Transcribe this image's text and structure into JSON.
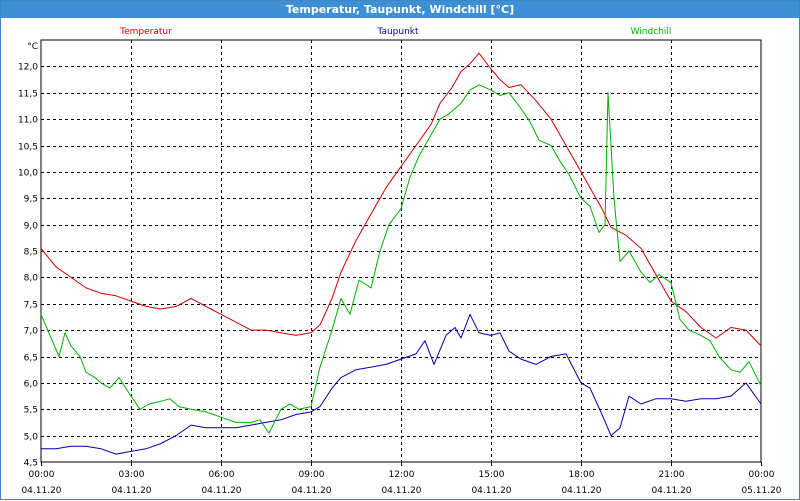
{
  "window": {
    "title": "Temperatur, Taupunkt, Windchill [°C]"
  },
  "colors": {
    "titlebar": "#3e8fd3",
    "Temperatur": "#cc0000",
    "Taupunkt": "#0000aa",
    "Windchill": "#00b000"
  },
  "chart_data": {
    "type": "line",
    "title": "Temperatur, Taupunkt, Windchill [°C]",
    "ylabel": "°C",
    "xlabel": "",
    "ylim": [
      4.5,
      12.5
    ],
    "xlim_hours": [
      0,
      24
    ],
    "grid": true,
    "legend": "top",
    "yticks": [
      4.5,
      5.0,
      5.5,
      6.0,
      6.5,
      7.0,
      7.5,
      8.0,
      8.5,
      9.0,
      9.5,
      10.0,
      10.5,
      11.0,
      11.5,
      12.0
    ],
    "ytick_labels": [
      "4,5",
      "5,0",
      "5,5",
      "6,0",
      "6,5",
      "7,0",
      "7,5",
      "8,0",
      "8,5",
      "9,0",
      "9,5",
      "10,0",
      "10,5",
      "11,0",
      "11,5",
      "12,0"
    ],
    "y_unit_label": "°C",
    "xticks": [
      {
        "time": "00:00",
        "date": "04.11.20"
      },
      {
        "time": "03:00",
        "date": "04.11.20"
      },
      {
        "time": "06:00",
        "date": "04.11.20"
      },
      {
        "time": "09:00",
        "date": "04.11.20"
      },
      {
        "time": "12:00",
        "date": "04.11.20"
      },
      {
        "time": "15:00",
        "date": "04.11.20"
      },
      {
        "time": "18:00",
        "date": "04.11.20"
      },
      {
        "time": "21:00",
        "date": "04.11.20"
      },
      {
        "time": "00:00",
        "date": "05.11.20"
      }
    ],
    "series": [
      {
        "name": "Temperatur",
        "x": [
          0,
          0.5,
          1,
          1.5,
          2,
          2.5,
          3,
          3.5,
          4,
          4.5,
          5,
          5.5,
          6,
          6.5,
          7,
          7.5,
          8,
          8.5,
          9,
          9.3,
          9.7,
          10,
          10.5,
          11,
          11.5,
          12,
          12.5,
          13,
          13.3,
          13.7,
          14,
          14.3,
          14.6,
          15,
          15.3,
          15.6,
          16,
          16.5,
          17,
          17.5,
          18,
          18.3,
          18.7,
          19,
          19.5,
          20,
          20.5,
          21,
          21.5,
          22,
          22.5,
          23,
          23.5,
          24
        ],
        "values": [
          8.55,
          8.2,
          8.0,
          7.8,
          7.7,
          7.65,
          7.55,
          7.45,
          7.4,
          7.45,
          7.6,
          7.45,
          7.3,
          7.15,
          7.0,
          7.0,
          6.95,
          6.9,
          6.95,
          7.1,
          7.6,
          8.1,
          8.7,
          9.2,
          9.7,
          10.1,
          10.5,
          10.9,
          11.3,
          11.6,
          11.9,
          12.05,
          12.25,
          11.95,
          11.75,
          11.6,
          11.65,
          11.35,
          11.0,
          10.5,
          10.0,
          9.7,
          9.3,
          8.95,
          8.8,
          8.55,
          8.05,
          7.55,
          7.35,
          7.05,
          6.85,
          7.05,
          7.0,
          6.7
        ]
      },
      {
        "name": "Taupunkt",
        "x": [
          0,
          0.5,
          1,
          1.5,
          2,
          2.5,
          3,
          3.5,
          4,
          4.5,
          5,
          5.5,
          6,
          6.5,
          7,
          7.5,
          8,
          8.5,
          9,
          9.3,
          9.7,
          10,
          10.5,
          11,
          11.5,
          12,
          12.5,
          12.8,
          13.1,
          13.5,
          13.8,
          14,
          14.3,
          14.6,
          15,
          15.3,
          15.6,
          16,
          16.5,
          17,
          17.5,
          18,
          18.3,
          18.7,
          19,
          19.3,
          19.6,
          20,
          20.5,
          21,
          21.5,
          22,
          22.5,
          23,
          23.5,
          24
        ],
        "values": [
          4.75,
          4.75,
          4.8,
          4.8,
          4.75,
          4.65,
          4.7,
          4.75,
          4.85,
          5.0,
          5.2,
          5.15,
          5.15,
          5.15,
          5.2,
          5.25,
          5.3,
          5.4,
          5.45,
          5.55,
          5.9,
          6.1,
          6.25,
          6.3,
          6.35,
          6.45,
          6.55,
          6.8,
          6.35,
          6.9,
          7.05,
          6.85,
          7.3,
          6.95,
          6.9,
          6.95,
          6.6,
          6.45,
          6.35,
          6.5,
          6.55,
          6.0,
          5.9,
          5.4,
          5.0,
          5.15,
          5.75,
          5.6,
          5.7,
          5.7,
          5.65,
          5.7,
          5.7,
          5.75,
          6.0,
          5.6
        ]
      },
      {
        "name": "Windchill",
        "x": [
          0,
          0.3,
          0.6,
          0.8,
          1,
          1.3,
          1.5,
          1.8,
          2,
          2.3,
          2.6,
          3,
          3.3,
          3.6,
          4,
          4.3,
          4.6,
          5,
          5.5,
          6,
          6.5,
          7,
          7.3,
          7.6,
          8,
          8.3,
          8.6,
          9,
          9.3,
          9.7,
          10,
          10.3,
          10.6,
          11,
          11.3,
          11.6,
          12,
          12.3,
          12.6,
          13,
          13.3,
          13.6,
          14,
          14.3,
          14.6,
          15,
          15.3,
          15.6,
          16,
          16.3,
          16.6,
          17,
          17.3,
          17.6,
          18,
          18.3,
          18.6,
          18.8,
          18.9,
          19.1,
          19.3,
          19.6,
          20,
          20.3,
          20.6,
          21,
          21.3,
          21.6,
          22,
          22.3,
          22.6,
          23,
          23.3,
          23.6,
          24
        ],
        "values": [
          7.3,
          6.9,
          6.5,
          6.95,
          6.7,
          6.5,
          6.2,
          6.1,
          6.0,
          5.9,
          6.1,
          5.75,
          5.5,
          5.6,
          5.65,
          5.7,
          5.55,
          5.5,
          5.45,
          5.35,
          5.25,
          5.25,
          5.3,
          5.05,
          5.5,
          5.6,
          5.5,
          5.55,
          6.3,
          7.0,
          7.6,
          7.3,
          7.95,
          7.8,
          8.5,
          9.0,
          9.3,
          9.9,
          10.3,
          10.7,
          11.0,
          11.1,
          11.3,
          11.55,
          11.65,
          11.55,
          11.45,
          11.5,
          11.2,
          10.95,
          10.6,
          10.5,
          10.2,
          9.95,
          9.5,
          9.35,
          8.85,
          9.0,
          11.5,
          9.5,
          8.3,
          8.5,
          8.1,
          7.9,
          8.05,
          7.9,
          7.2,
          7.0,
          6.9,
          6.8,
          6.5,
          6.25,
          6.2,
          6.4,
          5.95
        ]
      }
    ]
  }
}
